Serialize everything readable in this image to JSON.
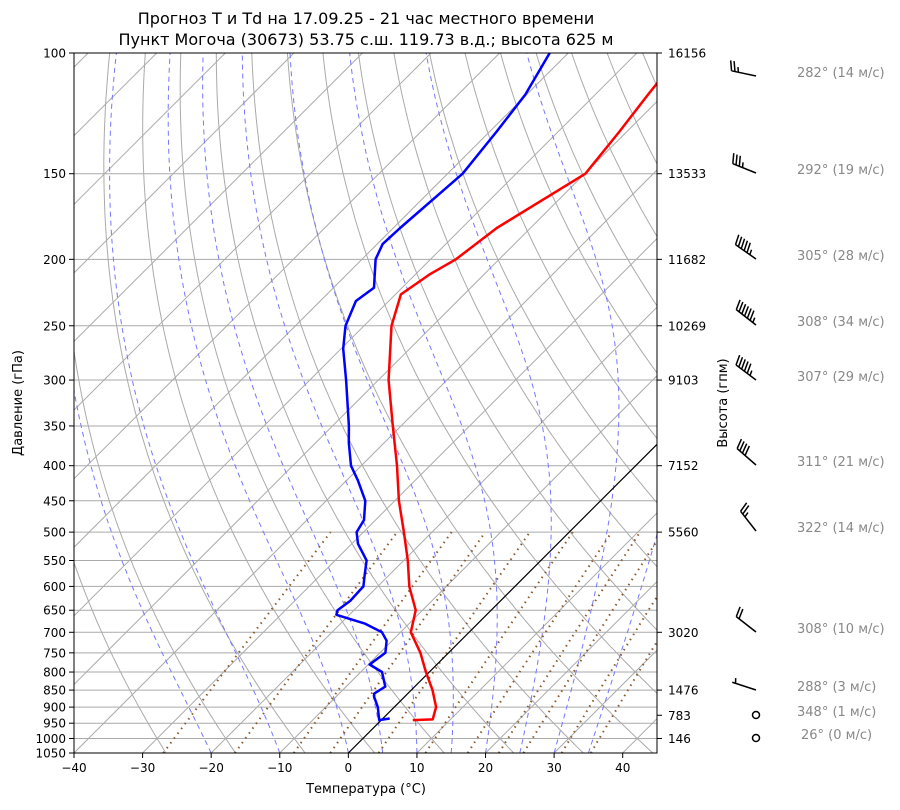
{
  "chart_data": {
    "type": "line",
    "subtype": "skew-T log-p",
    "title": [
      "Прогноз T и Td на 17.09.25 - 21 час местного времени",
      "Пункт Могоча (30673) 53.75 с.ш. 119.73 в.д.; высота 625 м"
    ],
    "xlabel": "Температура (°C)",
    "ylabel": "Давление (гПа)",
    "ylabel_right": "Высота (гпм)",
    "xlim": [
      -40,
      45
    ],
    "ylim": [
      1050,
      100
    ],
    "xticks": [
      -40,
      -30,
      -20,
      -10,
      0,
      10,
      20,
      30,
      40
    ],
    "yticks": [
      100,
      150,
      200,
      250,
      300,
      350,
      400,
      450,
      500,
      550,
      600,
      650,
      700,
      750,
      800,
      850,
      900,
      950,
      1000,
      1050
    ],
    "heights": [
      {
        "p": 100,
        "h": "16156"
      },
      {
        "p": 150,
        "h": "13533"
      },
      {
        "p": 200,
        "h": "11682"
      },
      {
        "p": 250,
        "h": "10269"
      },
      {
        "p": 300,
        "h": "9103"
      },
      {
        "p": 400,
        "h": "7152"
      },
      {
        "p": 500,
        "h": "5560"
      },
      {
        "p": 700,
        "h": "3020"
      },
      {
        "p": 850,
        "h": "1476"
      },
      {
        "p": 925,
        "h": "783"
      },
      {
        "p": 1000,
        "h": "146"
      }
    ],
    "series": [
      {
        "name": "T",
        "color": "#ff0000",
        "points": [
          [
            940,
            4.6
          ],
          [
            938,
            7.4
          ],
          [
            900,
            6.1
          ],
          [
            850,
            3.1
          ],
          [
            800,
            -0.5
          ],
          [
            750,
            -4.1
          ],
          [
            700,
            -8.5
          ],
          [
            650,
            -11.0
          ],
          [
            600,
            -15.4
          ],
          [
            550,
            -19.4
          ],
          [
            500,
            -24.1
          ],
          [
            450,
            -29.4
          ],
          [
            400,
            -34.8
          ],
          [
            350,
            -41.2
          ],
          [
            300,
            -48.5
          ],
          [
            250,
            -56.0
          ],
          [
            225,
            -59.2
          ],
          [
            210,
            -57.9
          ],
          [
            200,
            -56.3
          ],
          [
            180,
            -54.9
          ],
          [
            150,
            -49.9
          ],
          [
            130,
            -51.1
          ],
          [
            115,
            -52.3
          ],
          [
            100,
            -53.5
          ]
        ]
      },
      {
        "name": "Td",
        "color": "#0000ff",
        "points": [
          [
            935,
            1.0
          ],
          [
            940,
            -0.3
          ],
          [
            900,
            -2.4
          ],
          [
            870,
            -4.4
          ],
          [
            860,
            -4.9
          ],
          [
            840,
            -4.3
          ],
          [
            800,
            -6.9
          ],
          [
            780,
            -9.8
          ],
          [
            750,
            -9.2
          ],
          [
            720,
            -10.8
          ],
          [
            700,
            -12.7
          ],
          [
            680,
            -16.4
          ],
          [
            660,
            -21.9
          ],
          [
            650,
            -22.4
          ],
          [
            630,
            -21.9
          ],
          [
            600,
            -22.1
          ],
          [
            580,
            -23.4
          ],
          [
            550,
            -25.4
          ],
          [
            520,
            -29.1
          ],
          [
            500,
            -31.0
          ],
          [
            480,
            -31.7
          ],
          [
            450,
            -34.3
          ],
          [
            420,
            -38.4
          ],
          [
            400,
            -41.5
          ],
          [
            370,
            -45.2
          ],
          [
            350,
            -47.6
          ],
          [
            300,
            -54.7
          ],
          [
            270,
            -59.7
          ],
          [
            250,
            -62.7
          ],
          [
            230,
            -64.8
          ],
          [
            220,
            -64.1
          ],
          [
            200,
            -68.0
          ],
          [
            190,
            -69.2
          ],
          [
            180,
            -69.0
          ],
          [
            150,
            -67.8
          ],
          [
            130,
            -69.0
          ],
          [
            115,
            -70.2
          ],
          [
            100,
            -72.7
          ]
        ]
      }
    ],
    "winds": [
      {
        "p": 100,
        "dir": 282,
        "spd": 14,
        "label": "282° (14 м/с)"
      },
      {
        "p": 150,
        "dir": 292,
        "spd": 19,
        "label": "292° (19 м/с)"
      },
      {
        "p": 200,
        "dir": 305,
        "spd": 28,
        "label": "305° (28 м/с)"
      },
      {
        "p": 250,
        "dir": 308,
        "spd": 34,
        "label": "308° (34 м/с)"
      },
      {
        "p": 300,
        "dir": 307,
        "spd": 29,
        "label": "307° (29 м/с)"
      },
      {
        "p": 400,
        "dir": 311,
        "spd": 21,
        "label": "311° (21 м/с)"
      },
      {
        "p": 500,
        "dir": 322,
        "spd": 14,
        "label": "322° (14 м/с)"
      },
      {
        "p": 700,
        "dir": 308,
        "spd": 10,
        "label": "308° (10 м/с)"
      },
      {
        "p": 850,
        "dir": 288,
        "spd": 3,
        "label": "288° (3 м/с)"
      },
      {
        "p": 925,
        "dir": 348,
        "spd": 1,
        "label": "348° (1 м/с)"
      },
      {
        "p": 1000,
        "dir": 26,
        "spd": 0,
        "label": "26° (0 м/с)"
      }
    ],
    "colors": {
      "isotherm": "#aaaaaa",
      "dry_adiabat": "#aaaaaa",
      "moist_adiabat": "#7777ff",
      "mixing_ratio": "#8b5a2b",
      "zero_isotherm": "#000000",
      "wind_label": "#888888"
    }
  }
}
